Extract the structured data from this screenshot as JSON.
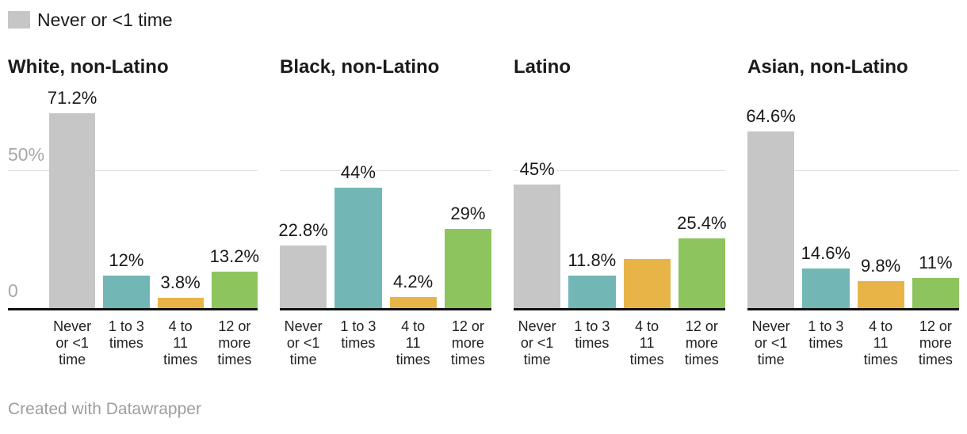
{
  "legend": {
    "label": "Never or <1 time"
  },
  "footer": {
    "credit": "Created with Datawrapper"
  },
  "chart_data": {
    "type": "bar",
    "layout": "small_multiples",
    "categories": [
      "Never or <1 time",
      "1 to 3 times",
      "4 to 11 times",
      "12 or more times"
    ],
    "category_tick_lines": [
      [
        "Never",
        "or <1",
        "time"
      ],
      [
        "1 to 3",
        "times"
      ],
      [
        "4 to",
        "11",
        "times"
      ],
      [
        "12 or",
        "more",
        "times"
      ]
    ],
    "bar_colors": [
      "#c6c6c6",
      "#72b7b5",
      "#e8b448",
      "#8ec45e"
    ],
    "gridline_color": "#dedede",
    "axis_color": "#111111",
    "unit": "%",
    "y_axis": {
      "ticks": [
        {
          "value": 50,
          "label": "50%"
        },
        {
          "value": 0,
          "label": "0"
        }
      ],
      "gridline_at": 50,
      "max_shown": 72
    },
    "legend_series": "Never or <1 time",
    "panels": [
      {
        "title": "White, non-Latino",
        "values": [
          71.2,
          12,
          3.8,
          13.2
        ],
        "labels": [
          "71.2%",
          "12%",
          "3.8%",
          "13.2%"
        ]
      },
      {
        "title": "Black, non-Latino",
        "values": [
          22.8,
          44,
          4.2,
          29
        ],
        "labels": [
          "22.8%",
          "44%",
          "4.2%",
          "29%"
        ]
      },
      {
        "title": "Latino",
        "values": [
          45,
          11.8,
          17.8,
          25.4
        ],
        "labels": [
          "45%",
          "11.8%",
          "",
          "25.4%"
        ]
      },
      {
        "title": "Asian, non-Latino",
        "values": [
          64.6,
          14.6,
          9.8,
          11
        ],
        "labels": [
          "64.6%",
          "14.6%",
          "9.8%",
          "11%"
        ]
      }
    ]
  }
}
